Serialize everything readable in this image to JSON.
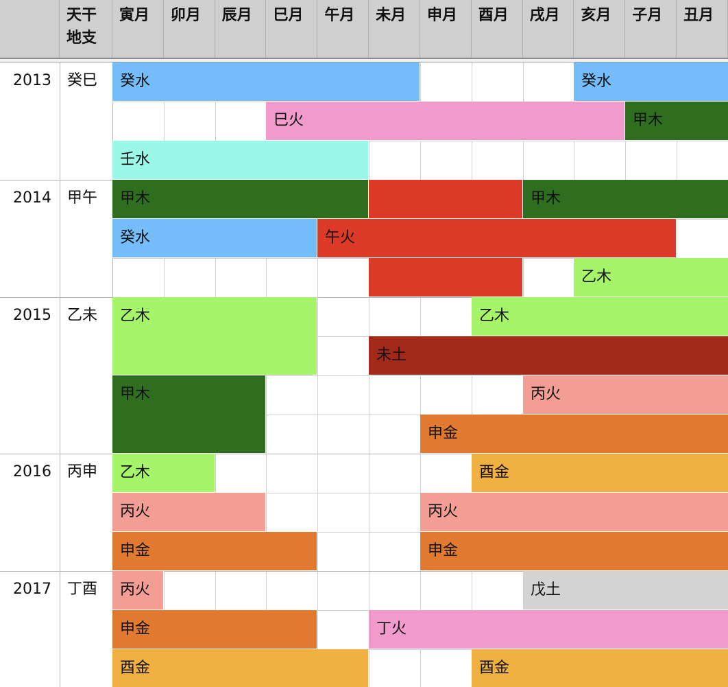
{
  "header": {
    "label_col_line1": "天干",
    "label_col_line2": "地支",
    "months": [
      "寅月",
      "卯月",
      "辰月",
      "巳月",
      "午月",
      "未月",
      "申月",
      "酉月",
      "戌月",
      "亥月",
      "子月",
      "丑月"
    ]
  },
  "element_colors": {
    "癸水": "#74bdfa",
    "壬水": "#9bf8e8",
    "巳火": "#f19bcd",
    "丁火": "#f19bcd",
    "甲木": "#2f6e1f",
    "乙木": "#a6f46a",
    "午火": "#da3a27",
    "未土": "#a32a1a",
    "丙火": "#f29e95",
    "申金": "#e17a31",
    "酉金": "#f1b142",
    "戊土": "#d3d3d3"
  },
  "years": [
    {
      "year": "2013",
      "ganzhi": "癸巳",
      "rows": [
        [
          {
            "label": "癸水",
            "color": "#74bdfa",
            "start": 0,
            "end": 6
          },
          {
            "label": "癸水",
            "color": "#74bdfa",
            "start": 9,
            "end": 12
          }
        ],
        [
          {
            "label": "巳火",
            "color": "#f19bcd",
            "start": 3,
            "end": 10
          },
          {
            "label": "甲木",
            "color": "#2f6e1f",
            "start": 10,
            "end": 12
          }
        ],
        [
          {
            "label": "壬水",
            "color": "#9bf8e8",
            "start": 0,
            "end": 5
          }
        ]
      ]
    },
    {
      "year": "2014",
      "ganzhi": "甲午",
      "rows": [
        [
          {
            "label": "甲木",
            "color": "#2f6e1f",
            "start": 0,
            "end": 5
          },
          {
            "label": "",
            "color": "#da3a27",
            "start": 5,
            "end": 8
          },
          {
            "label": "甲木",
            "color": "#2f6e1f",
            "start": 8,
            "end": 12
          }
        ],
        [
          {
            "label": "癸水",
            "color": "#74bdfa",
            "start": 0,
            "end": 4
          },
          {
            "label": "午火",
            "color": "#da3a27",
            "start": 4,
            "end": 11
          }
        ],
        [
          {
            "label": "",
            "color": "#da3a27",
            "start": 5,
            "end": 8
          },
          {
            "label": "乙木",
            "color": "#a6f46a",
            "start": 9,
            "end": 12
          }
        ]
      ]
    },
    {
      "year": "2015",
      "ganzhi": "乙未",
      "rows": [
        [
          {
            "label": "乙木",
            "color": "#a6f46a",
            "start": 0,
            "end": 4,
            "span": 2
          },
          {
            "label": "乙木",
            "color": "#a6f46a",
            "start": 7,
            "end": 12
          }
        ],
        [
          {
            "label": "未土",
            "color": "#a32a1a",
            "start": 5,
            "end": 12
          }
        ],
        [
          {
            "label": "甲木",
            "color": "#2f6e1f",
            "start": 0,
            "end": 3,
            "span": 2
          },
          {
            "label": "丙火",
            "color": "#f29e95",
            "start": 8,
            "end": 12
          }
        ],
        [
          {
            "label": "申金",
            "color": "#e17a31",
            "start": 6,
            "end": 12
          }
        ]
      ]
    },
    {
      "year": "2016",
      "ganzhi": "丙申",
      "rows": [
        [
          {
            "label": "乙木",
            "color": "#a6f46a",
            "start": 0,
            "end": 2
          },
          {
            "label": "酉金",
            "color": "#f1b142",
            "start": 7,
            "end": 12
          }
        ],
        [
          {
            "label": "丙火",
            "color": "#f29e95",
            "start": 0,
            "end": 3
          },
          {
            "label": "丙火",
            "color": "#f29e95",
            "start": 6,
            "end": 12
          }
        ],
        [
          {
            "label": "申金",
            "color": "#e17a31",
            "start": 0,
            "end": 4
          },
          {
            "label": "申金",
            "color": "#e17a31",
            "start": 6,
            "end": 12
          }
        ]
      ]
    },
    {
      "year": "2017",
      "ganzhi": "丁酉",
      "rows": [
        [
          {
            "label": "丙火",
            "color": "#f29e95",
            "start": 0,
            "end": 1
          },
          {
            "label": "戊土",
            "color": "#d3d3d3",
            "start": 8,
            "end": 12
          }
        ],
        [
          {
            "label": "申金",
            "color": "#e17a31",
            "start": 0,
            "end": 4
          },
          {
            "label": "丁火",
            "color": "#f19bcd",
            "start": 5,
            "end": 12
          }
        ],
        [
          {
            "label": "酉金",
            "color": "#f1b142",
            "start": 0,
            "end": 5
          },
          {
            "label": "酉金",
            "color": "#f1b142",
            "start": 7,
            "end": 12
          }
        ]
      ]
    }
  ]
}
